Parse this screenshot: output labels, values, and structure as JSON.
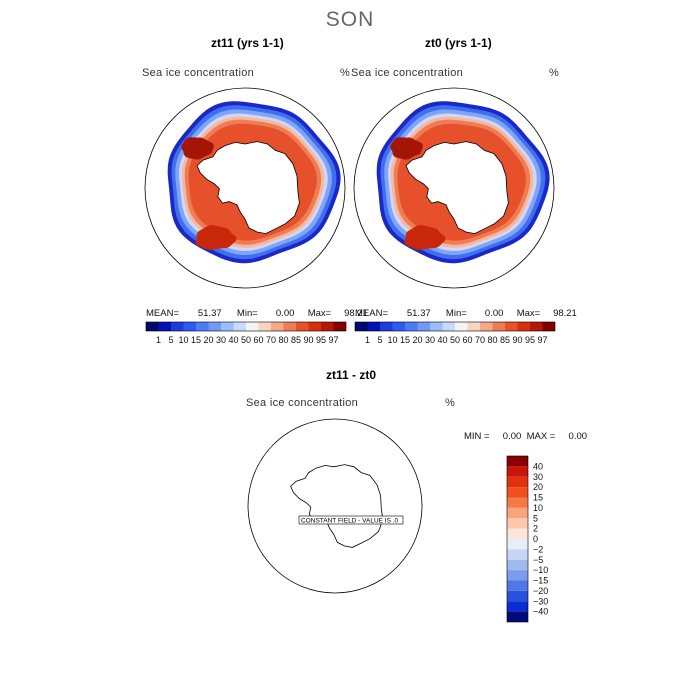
{
  "season": "SON",
  "panels": [
    {
      "title": "zt11 (yrs 1-1)",
      "variable": "Sea ice concentration",
      "unit": "%",
      "mean_label": "MEAN=",
      "mean": "51.37",
      "min_label": "Min=",
      "min": "0.00",
      "max_label": "Max=",
      "max": "98.21"
    },
    {
      "title": "zt0 (yrs 1-1)",
      "variable": "Sea ice concentration",
      "unit": "%",
      "mean_label": "MEAN=",
      "mean": "51.37",
      "min_label": "Min=",
      "min": "0.00",
      "max_label": "Max=",
      "max": "98.21"
    }
  ],
  "colorbar": {
    "ticks": [
      "1",
      "5",
      "10",
      "15",
      "20",
      "30",
      "40",
      "50",
      "60",
      "70",
      "80",
      "85",
      "90",
      "95",
      "97"
    ],
    "colors": [
      "#000a6e",
      "#0010b4",
      "#1e3cdc",
      "#2e5af0",
      "#4b7bf5",
      "#6f9af8",
      "#9bbcfb",
      "#c8dafd",
      "#f4f4f4",
      "#fcd2c1",
      "#f7a88c",
      "#ef7b57",
      "#e6522c",
      "#d7300f",
      "#b81605",
      "#820000"
    ]
  },
  "diff": {
    "title": "zt11 - zt0",
    "variable": "Sea ice concentration",
    "unit": "%",
    "minmax_text": "MIN =     0.00  MAX =     0.00",
    "constant_field_text": "CONSTANT FIELD - VALUE IS .0",
    "colorbar_ticks": [
      "40",
      "30",
      "20",
      "15",
      "10",
      "5",
      "2",
      "0",
      "−2",
      "−5",
      "−10",
      "−15",
      "−20",
      "−30",
      "−40"
    ],
    "colorbar_colors": [
      "#8b0000",
      "#c8160a",
      "#e0320f",
      "#f05020",
      "#f57a4a",
      "#f8a47c",
      "#fbc8ad",
      "#fbe6da",
      "#e8eef8",
      "#c6d6f4",
      "#a0baf0",
      "#7a9cec",
      "#4f78e6",
      "#2a50de",
      "#0a2cd0",
      "#000a78"
    ]
  }
}
